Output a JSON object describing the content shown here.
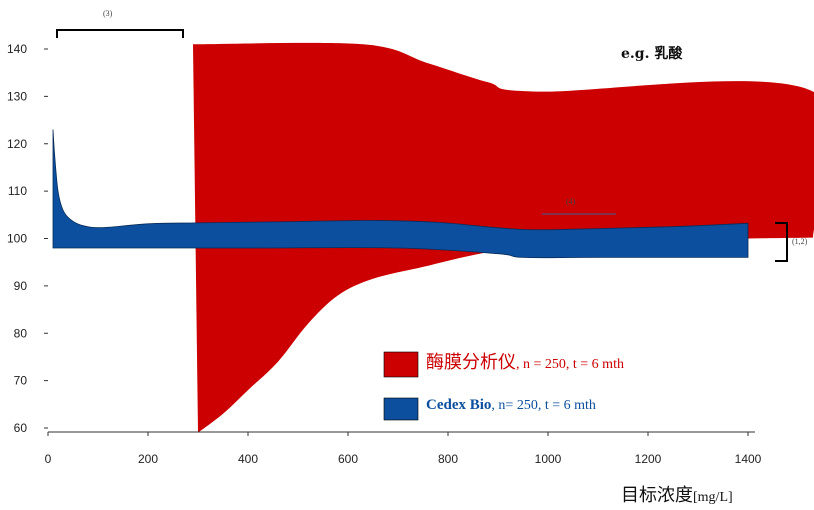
{
  "chart_data": {
    "type": "area",
    "title": "",
    "annotation_label": "e.g. 乳酸",
    "xlabel": "目标浓度",
    "xlabel_unit": "[mg/L]",
    "ylabel": "",
    "xlim": [
      0,
      1550
    ],
    "ylim": [
      59,
      146
    ],
    "xticks": [
      0,
      200,
      400,
      600,
      800,
      1000,
      1200,
      1400
    ],
    "yticks": [
      60,
      70,
      80,
      90,
      100,
      110,
      120,
      130,
      140
    ],
    "grid": false,
    "notes": {
      "bracket_top": "(3)",
      "bracket_right": "(1,2)",
      "line_mid": "(4)"
    },
    "series": [
      {
        "name_main": "酶膜分析仪",
        "name_detail": ", n = 250, t = 6 mth",
        "color": "#cc0000",
        "upper": [
          [
            290,
            141
          ],
          [
            630,
            141
          ],
          [
            760,
            137
          ],
          [
            880,
            133
          ],
          [
            980,
            131
          ],
          [
            1530,
            131
          ],
          [
            1530,
            100.2
          ]
        ],
        "lower": [
          [
            300,
            59
          ],
          [
            350,
            63
          ],
          [
            400,
            68
          ],
          [
            460,
            74
          ],
          [
            520,
            82
          ],
          [
            580,
            88
          ],
          [
            650,
            91.5
          ],
          [
            750,
            94
          ],
          [
            850,
            96.5
          ],
          [
            960,
            98.5
          ],
          [
            1100,
            99.5
          ],
          [
            1530,
            100.2
          ]
        ]
      },
      {
        "name_main": "Cedex Bio",
        "name_detail": ", n= 250, t = 6 mth",
        "color": "#0b4f9e",
        "upper": [
          [
            10,
            123
          ],
          [
            13,
            118
          ],
          [
            20,
            110
          ],
          [
            30,
            106
          ],
          [
            45,
            104
          ],
          [
            70,
            102.7
          ],
          [
            110,
            102.3
          ],
          [
            200,
            103.1
          ],
          [
            300,
            103.3
          ],
          [
            450,
            103.5
          ],
          [
            650,
            103.8
          ],
          [
            780,
            103.4
          ],
          [
            950,
            101.9
          ],
          [
            1100,
            102.1
          ],
          [
            1250,
            102.5
          ],
          [
            1400,
            103.2
          ]
        ],
        "lower": [
          [
            10,
            98
          ],
          [
            400,
            98
          ],
          [
            700,
            98
          ],
          [
            900,
            96.8
          ],
          [
            950,
            96
          ],
          [
            1100,
            96
          ],
          [
            1400,
            96
          ]
        ]
      }
    ]
  }
}
